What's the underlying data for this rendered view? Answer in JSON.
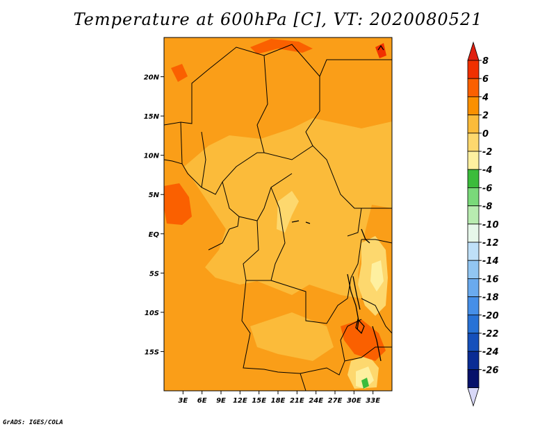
{
  "title": "Temperature at 600hPa [C], VT: 2020080521",
  "footer": "GrADS: IGES/COLA",
  "map": {
    "lon_range": [
      0,
      36
    ],
    "lat_range": [
      -20,
      25
    ],
    "lon_ticks": [
      {
        "value": 3,
        "label": "3E"
      },
      {
        "value": 6,
        "label": "6E"
      },
      {
        "value": 9,
        "label": "9E"
      },
      {
        "value": 12,
        "label": "12E"
      },
      {
        "value": 15,
        "label": "15E"
      },
      {
        "value": 18,
        "label": "18E"
      },
      {
        "value": 21,
        "label": "21E"
      },
      {
        "value": 24,
        "label": "24E"
      },
      {
        "value": 27,
        "label": "27E"
      },
      {
        "value": 30,
        "label": "30E"
      },
      {
        "value": 33,
        "label": "33E"
      }
    ],
    "lat_ticks": [
      {
        "value": 20,
        "label": "20N"
      },
      {
        "value": 15,
        "label": "15N"
      },
      {
        "value": 10,
        "label": "10N"
      },
      {
        "value": 5,
        "label": "5N"
      },
      {
        "value": 0,
        "label": "EQ"
      },
      {
        "value": -5,
        "label": "5S"
      },
      {
        "value": -10,
        "label": "10S"
      },
      {
        "value": -15,
        "label": "15S"
      }
    ]
  },
  "colorbar": {
    "levels": [
      "8",
      "6",
      "4",
      "2",
      "0",
      "-2",
      "-4",
      "-6",
      "-8",
      "-10",
      "-12",
      "-14",
      "-16",
      "-18",
      "-20",
      "-22",
      "-24",
      "-26"
    ],
    "colors": [
      "#f03000",
      "#fa6000",
      "#fa9000",
      "#fbbb3a",
      "#fdd86e",
      "#fef0a0",
      "#3cbc3c",
      "#7ad97a",
      "#b8ebb0",
      "#e6f7ea",
      "#bfe0f8",
      "#92c6f2",
      "#6aaaee",
      "#468fe8",
      "#2872d6",
      "#1650bb",
      "#0a2c94",
      "#06116a",
      "#dcdcf8"
    ],
    "top_color": "#e02010",
    "bottom_color": "#d8d8f8"
  }
}
